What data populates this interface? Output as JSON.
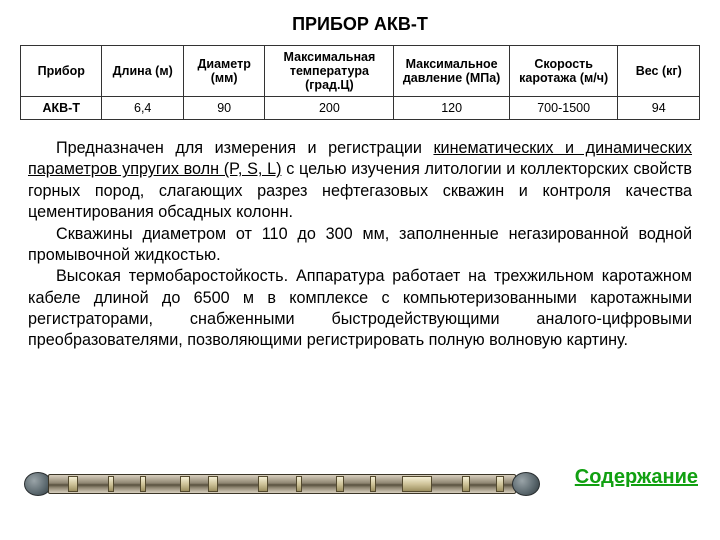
{
  "title": "ПРИБОР АКВ-Т",
  "table": {
    "columns": [
      "Прибор",
      "Длина (м)",
      "Диаметр (мм)",
      "Максимальная температура (град.Ц)",
      "Максимальное давление (МПа)",
      "Скорость каротажа (м/ч)",
      "Вес (кг)"
    ],
    "row": [
      "АКВ-Т",
      "6,4",
      "90",
      "200",
      "120",
      "700-1500",
      "94"
    ],
    "border_color": "#333333",
    "header_fontsize": 12.5,
    "cell_fontsize": 12.5,
    "col_widths_pct": [
      12,
      12,
      12,
      19,
      17,
      16,
      12
    ]
  },
  "paragraphs": {
    "p1_a": "Предназначен для измерения и регистрации ",
    "p1_u": "кинематических и динамических параметров упругих волн (P, S, L)",
    "p1_b": " с целью изучения литологии и коллекторских свойств горных пород, слагающих разрез нефтегазовых скважин и контроля качества цементирования обсадных колонн.",
    "p2": "Скважины диаметром от 110 до 300 мм, заполненные негазированной водной промывочной жидкостью.",
    "p3": "Высокая термобаростойкость. Аппаратура работает на трехжильном каротажном кабеле длиной до 6500 м в комплексе с компьютеризованными каротажными регистраторами, снабженными быстродействующими аналого-цифровыми преобразователями, позволяющими регистрировать полную волновую картину."
  },
  "link": {
    "label": "Содержание",
    "color": "#11a011"
  },
  "tool_illustration": {
    "body_gradient": [
      "#d9d0bf",
      "#8f8672",
      "#58503f"
    ],
    "cap_color": "#5d6a70",
    "band_color": "#cfc49a",
    "band_widths": [
      10,
      18,
      6,
      14,
      6,
      22,
      10,
      6,
      10,
      28,
      10,
      16,
      6,
      22,
      8,
      14,
      6,
      14,
      30,
      18,
      8,
      14,
      8,
      18
    ]
  },
  "style": {
    "background": "#ffffff",
    "title_fontsize": 18,
    "body_fontsize": 16.2,
    "link_fontsize": 20
  }
}
